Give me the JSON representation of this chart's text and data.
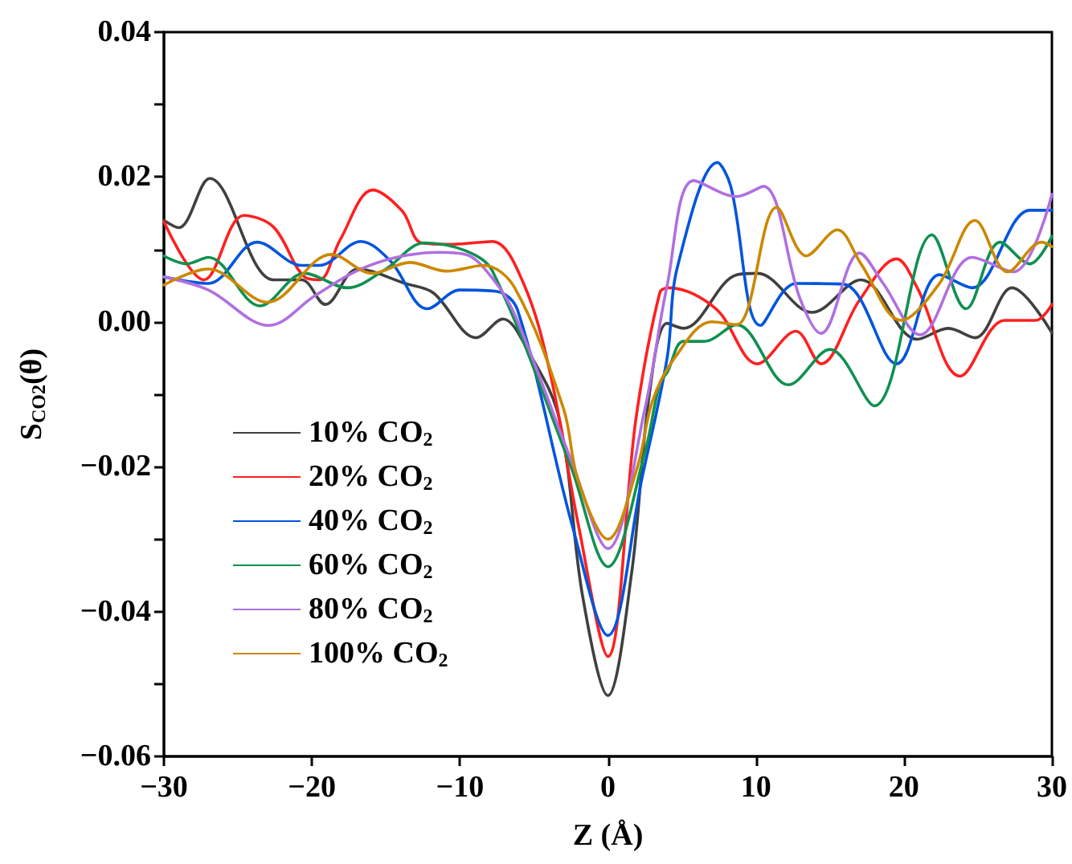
{
  "chart_data": {
    "type": "line",
    "xlabel": "Z (Å)",
    "ylabel": "S$_{CO2}$(θ)",
    "xlim": [
      -30,
      30
    ],
    "ylim": [
      -0.06,
      0.04
    ],
    "xticks": [
      {
        "value": -30,
        "label": "−30"
      },
      {
        "value": -20,
        "label": "−20"
      },
      {
        "value": -10,
        "label": "−10"
      },
      0,
      10,
      20,
      30
    ],
    "yticks": [
      {
        "value": -0.06,
        "label": "−0.06"
      },
      {
        "value": -0.05,
        "label": null
      },
      {
        "value": -0.04,
        "label": "−0.04"
      },
      {
        "value": -0.03,
        "label": null
      },
      {
        "value": -0.02,
        "label": "−0.02"
      },
      {
        "value": -0.01,
        "label": null
      },
      {
        "value": 0,
        "label": "0.00"
      },
      {
        "value": 0.01,
        "label": null
      },
      {
        "value": 0.02,
        "label": "0.02"
      },
      {
        "value": 0.03,
        "label": null
      },
      {
        "value": 0.04,
        "label": "0.04"
      }
    ],
    "grid": false,
    "legend": "left",
    "marker": "none",
    "line_style": "solid",
    "series": [
      {
        "name": "10% CO$_{2}$",
        "color": "#404040",
        "x": [
          -30,
          -29,
          -26.9,
          -22.6,
          -20.7,
          -19.1,
          -16.9,
          -13.7,
          -11.8,
          -8.9,
          -7.1,
          -5.4,
          -3.3,
          -1.7,
          0,
          1.6,
          2.8,
          4,
          5.1,
          8.7,
          10.1,
          13.8,
          17.1,
          20.9,
          23,
          24.8,
          27.3,
          30
        ],
        "values": [
          0.014,
          0.013,
          0.0198,
          0.0058,
          0.0058,
          0.0024,
          0.0073,
          0.0053,
          0.004,
          -0.0022,
          0.0004,
          -0.004,
          -0.0133,
          -0.038,
          -0.0516,
          -0.0347,
          -0.01,
          -0.0002,
          -0.0009,
          0.0065,
          0.0067,
          0.0013,
          0.0058,
          -0.0024,
          -0.0009,
          -0.0022,
          0.0047,
          -0.0015
        ]
      },
      {
        "name": "20% CO$_{2}$",
        "color": "#ff2020",
        "x": [
          -30,
          -27.3,
          -24.6,
          -22.6,
          -20.5,
          -19.5,
          -18.1,
          -15.9,
          -13.9,
          -12.6,
          -10.5,
          -7.8,
          -5.7,
          -3.9,
          -2,
          0,
          1.9,
          3.5,
          4.1,
          7.3,
          10.1,
          12.7,
          14.4,
          17,
          19.5,
          20.9,
          23.8,
          26.8,
          28.9,
          30
        ],
        "values": [
          0.0138,
          0.0058,
          0.0147,
          0.0131,
          0.0062,
          0.0058,
          0.0113,
          0.0182,
          0.0153,
          0.0109,
          0.0107,
          0.0111,
          0.0053,
          -0.0071,
          -0.028,
          -0.0462,
          -0.0133,
          0.004,
          0.0047,
          0.0018,
          -0.0058,
          -0.0013,
          -0.0058,
          0.003,
          0.0087,
          0.0047,
          -0.0075,
          0.0002,
          0.0002,
          0.0024
        ]
      },
      {
        "name": "40% CO$_{2}$",
        "color": "#0055dd",
        "x": [
          -30,
          -27,
          -23.7,
          -20.7,
          -19.5,
          -16.7,
          -14.7,
          -12.2,
          -10,
          -7.5,
          -6.1,
          -2.4,
          0,
          2.3,
          4,
          4.7,
          7.4,
          8.3,
          10.3,
          12.7,
          15.9,
          19.5,
          22.4,
          24.6,
          28.5,
          30
        ],
        "values": [
          0.0062,
          0.0053,
          0.011,
          0.0078,
          0.0078,
          0.0111,
          0.0084,
          0.0018,
          0.0044,
          0.0042,
          0.0016,
          -0.0282,
          -0.0433,
          -0.0216,
          -0.005,
          0.0076,
          0.022,
          0.0187,
          -0.0005,
          0.0053,
          0.0052,
          -0.0058,
          0.0065,
          0.0047,
          0.0154,
          0.0154
        ]
      },
      {
        "name": "60% CO$_{2}$",
        "color": "#109050",
        "x": [
          -30,
          -28.5,
          -27,
          -23.5,
          -20.5,
          -17.6,
          -15,
          -12.4,
          -9.6,
          -7.8,
          -2.5,
          0,
          2.5,
          3.5,
          4,
          5.1,
          6.5,
          8.7,
          12.2,
          15,
          18,
          21.9,
          24.2,
          26.5,
          28.5,
          30
        ],
        "values": [
          0.0091,
          0.008,
          0.0089,
          0.0022,
          0.0067,
          0.0047,
          0.0073,
          0.0109,
          0.0098,
          0.007,
          -0.02,
          -0.0338,
          -0.018,
          -0.0085,
          -0.007,
          -0.0027,
          -0.0027,
          -0.0004,
          -0.0087,
          -0.0038,
          -0.0116,
          0.012,
          0.0018,
          0.011,
          0.008,
          0.0118
        ]
      },
      {
        "name": "80% CO$_{2}$",
        "color": "#b070e0",
        "x": [
          -30,
          -27,
          -22.9,
          -19.8,
          -17,
          -14.3,
          -11.4,
          -9.6,
          -7.8,
          -6.3,
          -2.5,
          0,
          2.5,
          4,
          5.8,
          8.7,
          10.5,
          13,
          14.4,
          17,
          18.6,
          21.1,
          24.6,
          27.4,
          30
        ],
        "values": [
          0.0062,
          0.0044,
          -0.0005,
          0.0036,
          0.007,
          0.0089,
          0.0096,
          0.0093,
          0.006,
          0.001,
          -0.019,
          -0.0313,
          -0.012,
          0.005,
          0.0195,
          0.0173,
          0.0187,
          0.0031,
          -0.0016,
          0.0095,
          0.0053,
          -0.0018,
          0.0089,
          0.0069,
          0.0176
        ]
      },
      {
        "name": "100% CO$_{2}$",
        "color": "#cc8800",
        "x": [
          -30,
          -27,
          -23,
          -18.7,
          -15.9,
          -13.4,
          -10.9,
          -8.4,
          -6.3,
          -3,
          -2,
          0,
          2,
          3,
          4.5,
          7,
          8.7,
          11.4,
          13.4,
          15.5,
          17.1,
          19.8,
          22.4,
          24.8,
          27,
          29.3,
          30
        ],
        "values": [
          0.0051,
          0.0073,
          0.0027,
          0.0093,
          0.0067,
          0.0082,
          0.007,
          0.0078,
          0.0047,
          -0.012,
          -0.022,
          -0.03,
          -0.02,
          -0.011,
          -0.005,
          0.0,
          -0.0004,
          0.0158,
          0.0091,
          0.0127,
          0.008,
          0.0002,
          0.0053,
          0.014,
          0.0069,
          0.011,
          0.0104
        ]
      }
    ]
  }
}
